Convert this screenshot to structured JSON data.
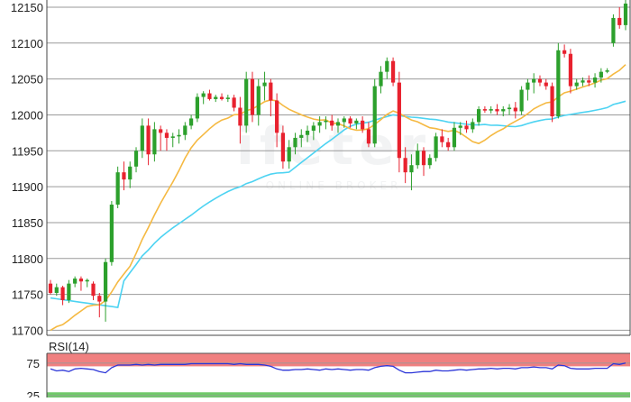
{
  "chart_data": {
    "type": "candlestick",
    "main_panel": {
      "y_ticks": [
        12150,
        12100,
        12050,
        12000,
        11950,
        11900,
        11850,
        11800,
        11750,
        11700
      ],
      "ylim": [
        11693,
        12160
      ],
      "grid": true,
      "colors": {
        "up": "#2ca02c",
        "down": "#e8212e",
        "ma_fast": "#f5b942",
        "ma_slow": "#4dd3f2",
        "grid": "#9a9a9a"
      },
      "candles": [
        [
          11765,
          11770,
          11750,
          11752
        ],
        [
          11752,
          11765,
          11748,
          11760
        ],
        [
          11760,
          11762,
          11735,
          11742
        ],
        [
          11742,
          11770,
          11738,
          11765
        ],
        [
          11765,
          11775,
          11760,
          11772
        ],
        [
          11772,
          11775,
          11755,
          11768
        ],
        [
          11768,
          11772,
          11760,
          11770
        ],
        [
          11765,
          11768,
          11742,
          11748
        ],
        [
          11748,
          11752,
          11718,
          11740
        ],
        [
          11740,
          11800,
          11712,
          11795
        ],
        [
          11795,
          11880,
          11790,
          11875
        ],
        [
          11875,
          11928,
          11870,
          11920
        ],
        [
          11920,
          11935,
          11895,
          11910
        ],
        [
          11910,
          11935,
          11898,
          11928
        ],
        [
          11928,
          11955,
          11920,
          11950
        ],
        [
          11950,
          11995,
          11940,
          11985
        ],
        [
          11985,
          11995,
          11930,
          11945
        ],
        [
          11945,
          11990,
          11935,
          11980
        ],
        [
          11980,
          11985,
          11950,
          11975
        ],
        [
          11975,
          11980,
          11950,
          11968
        ],
        [
          11968,
          11975,
          11955,
          11970
        ],
        [
          11970,
          11980,
          11960,
          11972
        ],
        [
          11972,
          11990,
          11965,
          11985
        ],
        [
          11985,
          12000,
          11980,
          11995
        ],
        [
          11995,
          12030,
          11990,
          12025
        ],
        [
          12025,
          12033,
          12015,
          12030
        ],
        [
          12030,
          12035,
          12020,
          12022
        ],
        [
          12022,
          12028,
          12018,
          12025
        ],
        [
          12025,
          12030,
          12020,
          12022
        ],
        [
          12022,
          12028,
          12018,
          12024
        ],
        [
          12024,
          12028,
          12005,
          12010
        ],
        [
          12010,
          12025,
          11960,
          11985
        ],
        [
          11985,
          12060,
          11975,
          12050
        ],
        [
          12050,
          12060,
          11990,
          12000
        ],
        [
          12000,
          12050,
          11985,
          12040
        ],
        [
          12040,
          12060,
          12020,
          12045
        ],
        [
          12045,
          12050,
          11998,
          12020
        ],
        [
          12020,
          12030,
          11955,
          11975
        ],
        [
          11975,
          11985,
          11925,
          11935
        ],
        [
          11935,
          11965,
          11925,
          11955
        ],
        [
          11955,
          11975,
          11945,
          11968
        ],
        [
          11968,
          11980,
          11955,
          11972
        ],
        [
          11972,
          11985,
          11962,
          11978
        ],
        [
          11978,
          11990,
          11965,
          11985
        ],
        [
          11985,
          11998,
          11975,
          11990
        ],
        [
          11990,
          11998,
          11980,
          11992
        ],
        [
          11992,
          12000,
          11978,
          11985
        ],
        [
          11985,
          11995,
          11975,
          11990
        ],
        [
          11990,
          11998,
          11982,
          11995
        ],
        [
          11995,
          11998,
          11982,
          11988
        ],
        [
          11988,
          11995,
          11980,
          11992
        ],
        [
          11992,
          11998,
          11975,
          11980
        ],
        [
          11980,
          11990,
          11955,
          11960
        ],
        [
          11960,
          12050,
          11955,
          12040
        ],
        [
          12040,
          12068,
          12030,
          12060
        ],
        [
          12060,
          12080,
          12050,
          12075
        ],
        [
          12075,
          12080,
          12040,
          12045
        ],
        [
          12045,
          12060,
          11920,
          11940
        ],
        [
          11940,
          11955,
          11905,
          11920
        ],
        [
          11920,
          11945,
          11895,
          11930
        ],
        [
          11930,
          11960,
          11925,
          11950
        ],
        [
          11950,
          11955,
          11915,
          11930
        ],
        [
          11930,
          11945,
          11925,
          11940
        ],
        [
          11940,
          11975,
          11935,
          11970
        ],
        [
          11970,
          11980,
          11955,
          11962
        ],
        [
          11962,
          11968,
          11950,
          11955
        ],
        [
          11955,
          11990,
          11950,
          11982
        ],
        [
          11982,
          11990,
          11972,
          11985
        ],
        [
          11985,
          11992,
          11975,
          11980
        ],
        [
          11980,
          11995,
          11975,
          11990
        ],
        [
          11990,
          12012,
          11985,
          12008
        ],
        [
          12008,
          12012,
          12003,
          12006
        ],
        [
          12006,
          12012,
          12002,
          12008
        ],
        [
          12008,
          12015,
          12000,
          12005
        ],
        [
          12005,
          12012,
          11998,
          12008
        ],
        [
          12008,
          12015,
          12000,
          12010
        ],
        [
          12010,
          12018,
          11995,
          12005
        ],
        [
          12005,
          12040,
          12000,
          12035
        ],
        [
          12035,
          12050,
          12020,
          12045
        ],
        [
          12045,
          12058,
          12030,
          12050
        ],
        [
          12050,
          12055,
          12040,
          12045
        ],
        [
          12045,
          12050,
          12035,
          12040
        ],
        [
          12040,
          12045,
          11990,
          11998
        ],
        [
          11998,
          12100,
          11995,
          12090
        ],
        [
          12090,
          12098,
          12080,
          12085
        ],
        [
          12085,
          12092,
          12030,
          12040
        ],
        [
          12040,
          12050,
          12035,
          12045
        ],
        [
          12045,
          12052,
          12040,
          12048
        ],
        [
          12048,
          12055,
          12040,
          12045
        ],
        [
          12045,
          12058,
          12038,
          12052
        ],
        [
          12052,
          12065,
          12045,
          12060
        ],
        [
          12060,
          12065,
          12058,
          12062
        ],
        [
          12100,
          12140,
          12095,
          12135
        ],
        [
          12135,
          12150,
          12120,
          12125
        ],
        [
          12125,
          12160,
          12118,
          12155
        ]
      ]
    },
    "rsi_panel": {
      "label": "RSI(14)",
      "y_ticks": [
        75,
        25
      ],
      "ylim": [
        22,
        90
      ],
      "overbought": 70,
      "oversold": 30,
      "values": [
        66,
        63,
        64,
        62,
        66,
        67,
        66,
        65,
        62,
        60,
        68,
        72,
        72,
        72,
        73,
        72,
        73,
        72,
        73,
        73,
        73,
        73,
        73,
        74,
        74,
        74,
        74,
        74,
        74,
        74,
        73,
        74,
        73,
        73,
        73,
        72,
        70,
        66,
        64,
        64,
        65,
        65,
        66,
        65,
        64,
        66,
        65,
        66,
        65,
        64,
        65,
        65,
        64,
        68,
        70,
        71,
        70,
        64,
        60,
        60,
        61,
        62,
        62,
        64,
        63,
        63,
        64,
        65,
        64,
        65,
        66,
        66,
        67,
        66,
        67,
        67,
        66,
        68,
        68,
        69,
        68,
        68,
        66,
        72,
        71,
        67,
        66,
        66,
        66,
        67,
        67,
        67,
        74,
        73,
        75
      ],
      "colors": {
        "line": "#2b35d8",
        "overbought_band": "#f08080",
        "oversold_band": "#70c96a"
      }
    },
    "watermark": {
      "logo": "ifeter",
      "tagline": "ONLINE BROKER"
    }
  }
}
